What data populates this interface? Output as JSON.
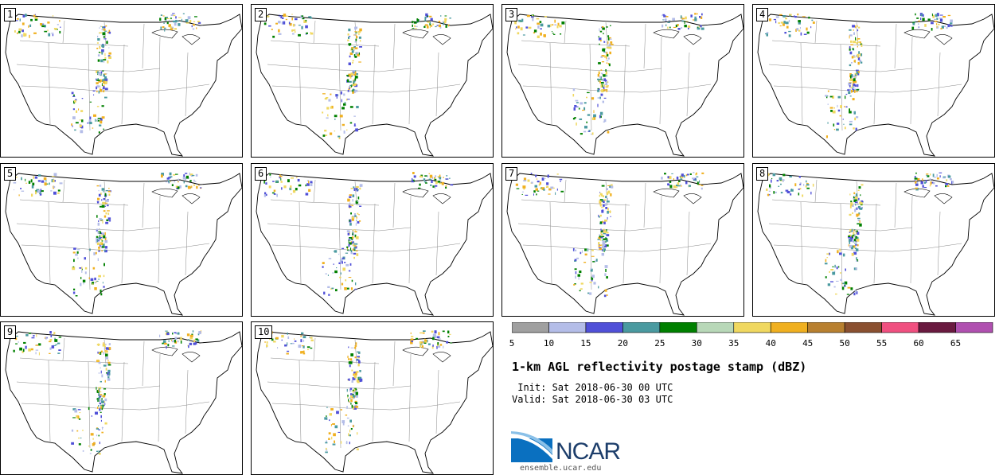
{
  "panels": [
    {
      "label": "1"
    },
    {
      "label": "2"
    },
    {
      "label": "3"
    },
    {
      "label": "4"
    },
    {
      "label": "5"
    },
    {
      "label": "6"
    },
    {
      "label": "7"
    },
    {
      "label": "8"
    },
    {
      "label": "9"
    },
    {
      "label": "10"
    }
  ],
  "colorbar": {
    "colors": [
      "#a0a0a0",
      "#b4bde8",
      "#5050d8",
      "#4a9aa0",
      "#008000",
      "#b8d8b8",
      "#f0d860",
      "#f0b020",
      "#b88030",
      "#8a5030",
      "#f05080",
      "#6a1a40",
      "#b050b0"
    ],
    "ticks": [
      "5",
      "10",
      "15",
      "20",
      "25",
      "30",
      "35",
      "40",
      "45",
      "50",
      "55",
      "60",
      "65"
    ]
  },
  "title": "1-km AGL reflectivity postage stamp (dBZ)",
  "init": " Init: Sat 2018-06-30 00 UTC",
  "valid": "Valid: Sat 2018-06-30 03 UTC",
  "logo": {
    "text": "NCAR",
    "url": "ensemble.ucar.edu"
  }
}
